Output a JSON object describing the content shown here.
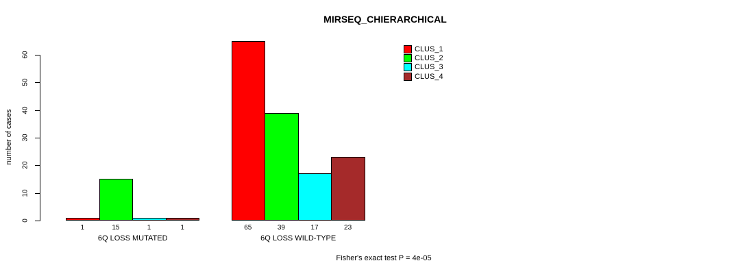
{
  "chart_data": {
    "type": "bar",
    "title": "MIRSEQ_CHIERARCHICAL",
    "ylabel": "number of cases",
    "xlabel": "",
    "ylim": [
      0,
      60
    ],
    "yticks": [
      0,
      10,
      20,
      30,
      40,
      50,
      60
    ],
    "categories": [
      "6Q LOSS MUTATED",
      "6Q LOSS WILD-TYPE"
    ],
    "series": [
      {
        "name": "CLUS_1",
        "color": "#FF0000",
        "values": [
          1,
          65
        ]
      },
      {
        "name": "CLUS_2",
        "color": "#00FF00",
        "values": [
          15,
          39
        ]
      },
      {
        "name": "CLUS_3",
        "color": "#00FFFF",
        "values": [
          1,
          17
        ]
      },
      {
        "name": "CLUS_4",
        "color": "#A52A2A",
        "values": [
          1,
          23
        ]
      }
    ],
    "bar_value_labels_shown": true,
    "legend_position": "top-right",
    "grid": false,
    "annotation": "Fisher's exact test P = 4e-05"
  },
  "colors": {
    "background": "#FFFFFF",
    "axis": "#000000",
    "text": "#000000"
  }
}
